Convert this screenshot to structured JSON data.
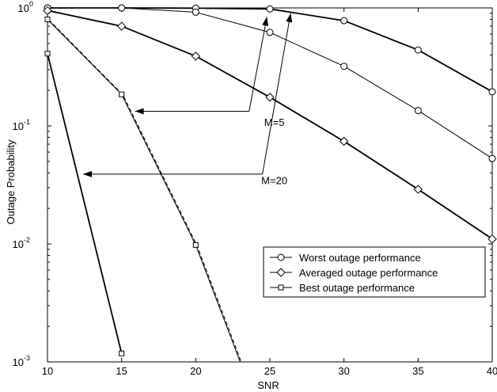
{
  "chart_data": {
    "type": "line",
    "title": "",
    "xlabel": "SNR",
    "ylabel": "Outage Probability",
    "xlim": [
      10,
      40
    ],
    "ylim": [
      0.001,
      1
    ],
    "yscale": "log",
    "grid": false,
    "legend_position": "lower-right",
    "x_ticks": [
      10,
      15,
      20,
      25,
      30,
      35,
      40
    ],
    "x_tick_labels": [
      "10",
      "15",
      "20",
      "25",
      "30",
      "35",
      "40"
    ],
    "y_ticks": [
      {
        "value": 1,
        "mantissa": "10",
        "exponent": "0"
      },
      {
        "value": 0.1,
        "mantissa": "10",
        "exponent": "-1"
      },
      {
        "value": 0.01,
        "mantissa": "10",
        "exponent": "-2"
      },
      {
        "value": 0.001,
        "mantissa": "10",
        "exponent": "-3"
      }
    ],
    "legend": [
      {
        "label": "Worst outage performance",
        "marker": "circle"
      },
      {
        "label": "Averaged outage performance",
        "marker": "diamond"
      },
      {
        "label": "Best outage performance",
        "marker": "square"
      }
    ],
    "series": [
      {
        "group": "M=20",
        "marker": "circle",
        "bold": true,
        "dashed_overlay": false,
        "x": [
          10,
          15,
          20,
          25,
          30,
          35,
          40
        ],
        "y": [
          1,
          1,
          0.995,
          0.98,
          0.78,
          0.44,
          0.195
        ]
      },
      {
        "group": "M=5",
        "marker": "circle",
        "bold": false,
        "dashed_overlay": false,
        "x": [
          10,
          15,
          20,
          25,
          30,
          35,
          40
        ],
        "y": [
          1,
          1,
          0.92,
          0.62,
          0.32,
          0.135,
          0.053
        ]
      },
      {
        "group": "M=5",
        "marker": "diamond",
        "bold": true,
        "dashed_overlay": true,
        "x": [
          10,
          15,
          20,
          25,
          30,
          35,
          40
        ],
        "y": [
          0.95,
          0.7,
          0.39,
          0.175,
          0.074,
          0.029,
          0.011
        ]
      },
      {
        "group": "M=5",
        "marker": "square",
        "bold": false,
        "dashed_overlay": true,
        "x": [
          10,
          15,
          20,
          23
        ],
        "y": [
          0.8,
          0.185,
          0.0098,
          0.001
        ]
      },
      {
        "group": "M=20",
        "marker": "square",
        "bold": true,
        "dashed_overlay": false,
        "x": [
          10,
          15
        ],
        "y": [
          0.41,
          0.00118
        ]
      }
    ],
    "annotations": [
      {
        "text": "M=5",
        "x": 25.3,
        "y": 0.1,
        "arrows": [
          {
            "from": [
              23.6,
              0.133
            ],
            "to": [
              15.9,
              0.133
            ]
          },
          {
            "from": [
              23.6,
              0.133
            ],
            "to": [
              24.8,
              0.84
            ]
          }
        ]
      },
      {
        "text": "M=20",
        "x": 25.3,
        "y": 0.032,
        "arrows": [
          {
            "from": [
              24.5,
              0.039
            ],
            "to": [
              12.4,
              0.039
            ]
          },
          {
            "from": [
              24.5,
              0.039
            ],
            "to": [
              26.4,
              0.9
            ]
          }
        ]
      }
    ]
  }
}
